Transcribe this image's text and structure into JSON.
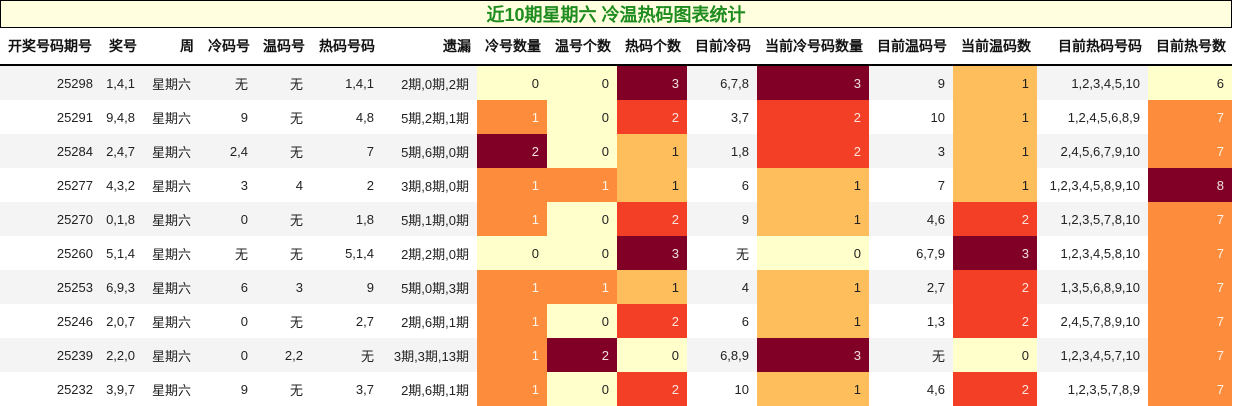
{
  "title": "近10期星期六 冷温热码图表统计",
  "colors": {
    "title_text": "#1e8c1e",
    "title_bg": "#ffffe0",
    "level_0": "#ffffcc",
    "level_1": "#febe5b",
    "level_2": "#fd8d3c",
    "level_3": "#f33f25",
    "level_4": "#800026"
  },
  "columns": [
    "开奖号码期号",
    "奖号",
    "周",
    "冷码号",
    "温码号",
    "热码号码",
    "遗漏",
    "冷号数量",
    "温号个数",
    "热码个数",
    "目前冷码",
    "当前冷号码数量",
    "目前温码号",
    "当前温码数",
    "目前热码号码",
    "目前热号数"
  ],
  "rows": [
    {
      "issue": "25298",
      "numbers": "1,4,1",
      "weekday": "星期六",
      "cold": "无",
      "warm": "无",
      "hot": "1,4,1",
      "omission": "2期,0期,2期",
      "cold_count": "0",
      "cold_lv": "lv0",
      "warm_count": "0",
      "warm_lv": "lv0",
      "hot_count": "3",
      "hot_lv": "lv4",
      "cur_cold": "6,7,8",
      "cur_cold_count": "3",
      "cur_cold_lv": "lv4",
      "cur_warm": "9",
      "cur_warm_count": "1",
      "cur_warm_lv": "lv1",
      "cur_hot": "1,2,3,4,5,10",
      "cur_hot_count": "6",
      "cur_hot_lv": "lv0"
    },
    {
      "issue": "25291",
      "numbers": "9,4,8",
      "weekday": "星期六",
      "cold": "9",
      "warm": "无",
      "hot": "4,8",
      "omission": "5期,2期,1期",
      "cold_count": "1",
      "cold_lv": "lv2",
      "warm_count": "0",
      "warm_lv": "lv0",
      "hot_count": "2",
      "hot_lv": "lv3",
      "cur_cold": "3,7",
      "cur_cold_count": "2",
      "cur_cold_lv": "lv3",
      "cur_warm": "10",
      "cur_warm_count": "1",
      "cur_warm_lv": "lv1",
      "cur_hot": "1,2,4,5,6,8,9",
      "cur_hot_count": "7",
      "cur_hot_lv": "lv2"
    },
    {
      "issue": "25284",
      "numbers": "2,4,7",
      "weekday": "星期六",
      "cold": "2,4",
      "warm": "无",
      "hot": "7",
      "omission": "5期,6期,0期",
      "cold_count": "2",
      "cold_lv": "lv4",
      "warm_count": "0",
      "warm_lv": "lv0",
      "hot_count": "1",
      "hot_lv": "lv1",
      "cur_cold": "1,8",
      "cur_cold_count": "2",
      "cur_cold_lv": "lv3",
      "cur_warm": "3",
      "cur_warm_count": "1",
      "cur_warm_lv": "lv1",
      "cur_hot": "2,4,5,6,7,9,10",
      "cur_hot_count": "7",
      "cur_hot_lv": "lv2"
    },
    {
      "issue": "25277",
      "numbers": "4,3,2",
      "weekday": "星期六",
      "cold": "3",
      "warm": "4",
      "hot": "2",
      "omission": "3期,8期,0期",
      "cold_count": "1",
      "cold_lv": "lv2",
      "warm_count": "1",
      "warm_lv": "lv2",
      "hot_count": "1",
      "hot_lv": "lv1",
      "cur_cold": "6",
      "cur_cold_count": "1",
      "cur_cold_lv": "lv1",
      "cur_warm": "7",
      "cur_warm_count": "1",
      "cur_warm_lv": "lv1",
      "cur_hot": "1,2,3,4,5,8,9,10",
      "cur_hot_count": "8",
      "cur_hot_lv": "lv4"
    },
    {
      "issue": "25270",
      "numbers": "0,1,8",
      "weekday": "星期六",
      "cold": "0",
      "warm": "无",
      "hot": "1,8",
      "omission": "5期,1期,0期",
      "cold_count": "1",
      "cold_lv": "lv2",
      "warm_count": "0",
      "warm_lv": "lv0",
      "hot_count": "2",
      "hot_lv": "lv3",
      "cur_cold": "9",
      "cur_cold_count": "1",
      "cur_cold_lv": "lv1",
      "cur_warm": "4,6",
      "cur_warm_count": "2",
      "cur_warm_lv": "lv3",
      "cur_hot": "1,2,3,5,7,8,10",
      "cur_hot_count": "7",
      "cur_hot_lv": "lv2"
    },
    {
      "issue": "25260",
      "numbers": "5,1,4",
      "weekday": "星期六",
      "cold": "无",
      "warm": "无",
      "hot": "5,1,4",
      "omission": "2期,2期,0期",
      "cold_count": "0",
      "cold_lv": "lv0",
      "warm_count": "0",
      "warm_lv": "lv0",
      "hot_count": "3",
      "hot_lv": "lv4",
      "cur_cold": "无",
      "cur_cold_count": "0",
      "cur_cold_lv": "lv0",
      "cur_warm": "6,7,9",
      "cur_warm_count": "3",
      "cur_warm_lv": "lv4",
      "cur_hot": "1,2,3,4,5,8,10",
      "cur_hot_count": "7",
      "cur_hot_lv": "lv2"
    },
    {
      "issue": "25253",
      "numbers": "6,9,3",
      "weekday": "星期六",
      "cold": "6",
      "warm": "3",
      "hot": "9",
      "omission": "5期,0期,3期",
      "cold_count": "1",
      "cold_lv": "lv2",
      "warm_count": "1",
      "warm_lv": "lv2",
      "hot_count": "1",
      "hot_lv": "lv1",
      "cur_cold": "4",
      "cur_cold_count": "1",
      "cur_cold_lv": "lv1",
      "cur_warm": "2,7",
      "cur_warm_count": "2",
      "cur_warm_lv": "lv3",
      "cur_hot": "1,3,5,6,8,9,10",
      "cur_hot_count": "7",
      "cur_hot_lv": "lv2"
    },
    {
      "issue": "25246",
      "numbers": "2,0,7",
      "weekday": "星期六",
      "cold": "0",
      "warm": "无",
      "hot": "2,7",
      "omission": "2期,6期,1期",
      "cold_count": "1",
      "cold_lv": "lv2",
      "warm_count": "0",
      "warm_lv": "lv0",
      "hot_count": "2",
      "hot_lv": "lv3",
      "cur_cold": "6",
      "cur_cold_count": "1",
      "cur_cold_lv": "lv1",
      "cur_warm": "1,3",
      "cur_warm_count": "2",
      "cur_warm_lv": "lv3",
      "cur_hot": "2,4,5,7,8,9,10",
      "cur_hot_count": "7",
      "cur_hot_lv": "lv2"
    },
    {
      "issue": "25239",
      "numbers": "2,2,0",
      "weekday": "星期六",
      "cold": "0",
      "warm": "2,2",
      "hot": "无",
      "omission": "3期,3期,13期",
      "cold_count": "1",
      "cold_lv": "lv2",
      "warm_count": "2",
      "warm_lv": "lv4",
      "hot_count": "0",
      "hot_lv": "lv0",
      "cur_cold": "6,8,9",
      "cur_cold_count": "3",
      "cur_cold_lv": "lv4",
      "cur_warm": "无",
      "cur_warm_count": "0",
      "cur_warm_lv": "lv0",
      "cur_hot": "1,2,3,4,5,7,10",
      "cur_hot_count": "7",
      "cur_hot_lv": "lv2"
    },
    {
      "issue": "25232",
      "numbers": "3,9,7",
      "weekday": "星期六",
      "cold": "9",
      "warm": "无",
      "hot": "3,7",
      "omission": "2期,6期,1期",
      "cold_count": "1",
      "cold_lv": "lv2",
      "warm_count": "0",
      "warm_lv": "lv0",
      "hot_count": "2",
      "hot_lv": "lv3",
      "cur_cold": "10",
      "cur_cold_count": "1",
      "cur_cold_lv": "lv1",
      "cur_warm": "4,6",
      "cur_warm_count": "2",
      "cur_warm_lv": "lv3",
      "cur_hot": "1,2,3,5,7,8,9",
      "cur_hot_count": "7",
      "cur_hot_lv": "lv2"
    }
  ]
}
